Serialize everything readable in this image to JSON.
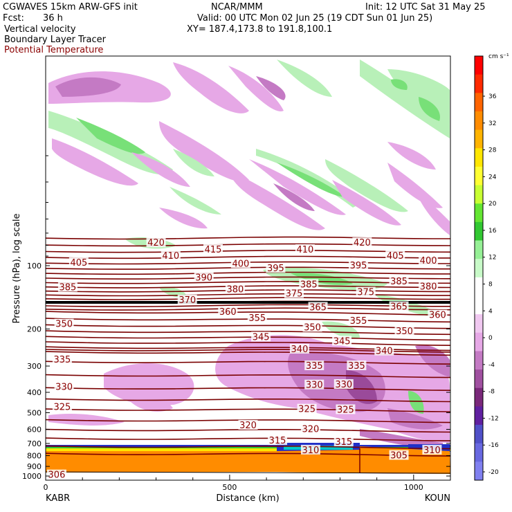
{
  "header": {
    "model": "CGWAVES 15km ARW-GFS init",
    "center": "NCAR/MMM",
    "init": "Init: 12 UTC Sat 31 May 25",
    "fcst_label": "Fcst:",
    "fcst_value": "36 h",
    "valid": "Valid: 00 UTC Mon 02 Jun 25 (19 CDT Sun 01 Jun 25)",
    "field1": "Vertical velocity",
    "field2": "Boundary Layer Tracer",
    "field3": "Potential Temperature",
    "xy": "XY= 187.4,173.8 to 191.8,100.1"
  },
  "colors": {
    "theta": "#7a0000",
    "terrain": "#ff8c00",
    "up_weak": "#b8f0b8",
    "up_mid": "#78e078",
    "down_weak": "#e6a8e6",
    "down_mid": "#c47ac4",
    "down_strong": "#9a4a9a"
  },
  "chart_data": {
    "type": "heatmap",
    "title": "",
    "xlabel": "Distance (km)",
    "ylabel": "Pressure (hPa), log scale",
    "xlim": [
      0,
      1100
    ],
    "x_ticks": [
      "0",
      "500",
      "1000"
    ],
    "x_tick_values": [
      0,
      500,
      1000
    ],
    "y_ticks": [
      "100",
      "200",
      "300",
      "400",
      "500",
      "600",
      "700",
      "800",
      "900",
      "1000"
    ],
    "y_tick_values": [
      100,
      200,
      300,
      400,
      500,
      600,
      700,
      800,
      900,
      1000
    ],
    "endpoints": {
      "left": "KABR",
      "right": "KOUN"
    },
    "colorbar": {
      "units": "cm s⁻¹",
      "labels": [
        "36",
        "32",
        "28",
        "24",
        "20",
        "16",
        "12",
        "8",
        "4",
        "0",
        "-4",
        "-8",
        "-12",
        "-16",
        "-20"
      ],
      "colors": [
        "#ff0000",
        "#ff2a00",
        "#ff6400",
        "#ff8c00",
        "#ffb400",
        "#ffe600",
        "#ffff32",
        "#c8ff32",
        "#64e632",
        "#32c832",
        "#96f096",
        "#c8fac8",
        "#ffffff",
        "#ffffff",
        "#f0c8f0",
        "#e6a8e6",
        "#c47ac4",
        "#a050a0",
        "#7a287a",
        "#6020a0",
        "#5050c8",
        "#6868e0",
        "#8080f0"
      ]
    },
    "theta_labels": [
      {
        "text": "420",
        "x": 300,
        "p": 78
      },
      {
        "text": "420",
        "x": 860,
        "p": 78
      },
      {
        "text": "415",
        "x": 455,
        "p": 84
      },
      {
        "text": "410",
        "x": 340,
        "p": 90
      },
      {
        "text": "410",
        "x": 705,
        "p": 84
      },
      {
        "text": "405",
        "x": 90,
        "p": 97
      },
      {
        "text": "405",
        "x": 950,
        "p": 90
      },
      {
        "text": "400",
        "x": 530,
        "p": 98
      },
      {
        "text": "400",
        "x": 1040,
        "p": 95
      },
      {
        "text": "395",
        "x": 625,
        "p": 103
      },
      {
        "text": "395",
        "x": 850,
        "p": 100
      },
      {
        "text": "390",
        "x": 430,
        "p": 114
      },
      {
        "text": "385",
        "x": 60,
        "p": 127
      },
      {
        "text": "385",
        "x": 715,
        "p": 123
      },
      {
        "text": "385",
        "x": 960,
        "p": 119
      },
      {
        "text": "380",
        "x": 515,
        "p": 130
      },
      {
        "text": "380",
        "x": 1040,
        "p": 126
      },
      {
        "text": "375",
        "x": 675,
        "p": 136
      },
      {
        "text": "375",
        "x": 870,
        "p": 134
      },
      {
        "text": "370",
        "x": 385,
        "p": 146
      },
      {
        "text": "365",
        "x": 740,
        "p": 158
      },
      {
        "text": "365",
        "x": 960,
        "p": 157
      },
      {
        "text": "360",
        "x": 495,
        "p": 166
      },
      {
        "text": "360",
        "x": 1065,
        "p": 172
      },
      {
        "text": "355",
        "x": 575,
        "p": 178
      },
      {
        "text": "355",
        "x": 850,
        "p": 183
      },
      {
        "text": "350",
        "x": 50,
        "p": 190
      },
      {
        "text": "350",
        "x": 725,
        "p": 197
      },
      {
        "text": "350",
        "x": 975,
        "p": 205
      },
      {
        "text": "345",
        "x": 585,
        "p": 219
      },
      {
        "text": "345",
        "x": 805,
        "p": 229
      },
      {
        "text": "340",
        "x": 690,
        "p": 250
      },
      {
        "text": "340",
        "x": 920,
        "p": 255
      },
      {
        "text": "335",
        "x": 45,
        "p": 280
      },
      {
        "text": "335",
        "x": 730,
        "p": 300
      },
      {
        "text": "335",
        "x": 845,
        "p": 300
      },
      {
        "text": "330",
        "x": 50,
        "p": 378
      },
      {
        "text": "330",
        "x": 730,
        "p": 370
      },
      {
        "text": "330",
        "x": 810,
        "p": 368
      },
      {
        "text": "325",
        "x": 45,
        "p": 470
      },
      {
        "text": "325",
        "x": 710,
        "p": 482
      },
      {
        "text": "325",
        "x": 815,
        "p": 485
      },
      {
        "text": "320",
        "x": 550,
        "p": 575
      },
      {
        "text": "320",
        "x": 720,
        "p": 600
      },
      {
        "text": "315",
        "x": 630,
        "p": 680
      },
      {
        "text": "315",
        "x": 810,
        "p": 690
      },
      {
        "text": "310",
        "x": 720,
        "p": 755
      },
      {
        "text": "310",
        "x": 1050,
        "p": 755
      },
      {
        "text": "305",
        "x": 960,
        "p": 800
      },
      {
        "text": "306",
        "x": 30,
        "p": 990
      }
    ]
  }
}
